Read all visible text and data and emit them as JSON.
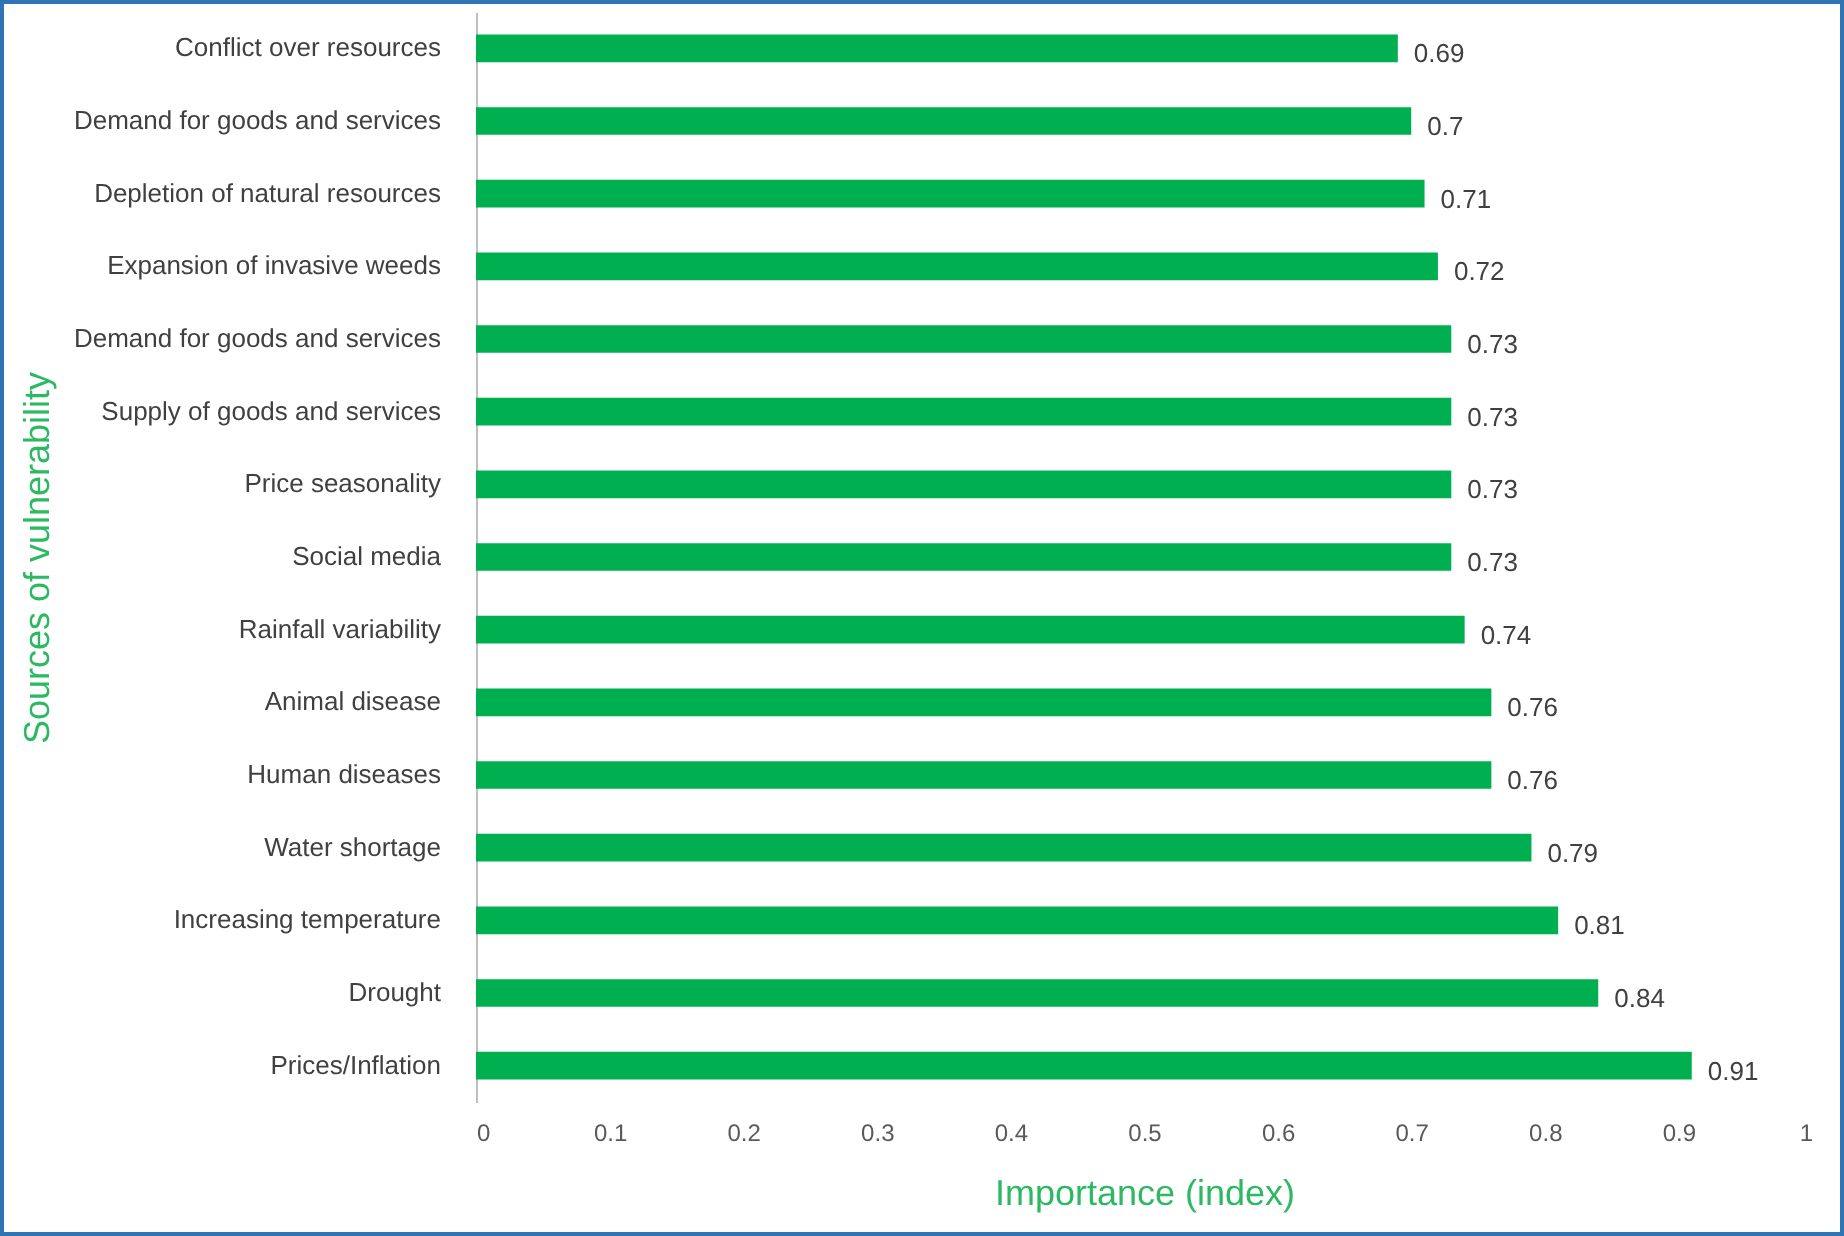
{
  "chart_data": {
    "type": "bar",
    "orientation": "horizontal",
    "xlabel": "Importance (index)",
    "ylabel": "Sources of vulnerability",
    "categories": [
      "Conflict over resources",
      "Demand for goods and services",
      "Depletion of natural resources",
      "Expansion of invasive weeds",
      "Demand for goods and services",
      "Supply of goods and services",
      "Price seasonality",
      "Social media",
      "Rainfall variability",
      "Animal disease",
      "Human diseases",
      "Water shortage",
      "Increasing temperature",
      "Drought",
      "Prices/Inflation"
    ],
    "values": [
      0.69,
      0.7,
      0.71,
      0.72,
      0.73,
      0.73,
      0.73,
      0.73,
      0.74,
      0.76,
      0.76,
      0.79,
      0.81,
      0.84,
      0.91
    ],
    "color": "#00b050",
    "xlim": [
      0,
      1
    ],
    "xticks": [
      0,
      0.1,
      0.2,
      0.3,
      0.4,
      0.5,
      0.6,
      0.7,
      0.8,
      0.9,
      1
    ],
    "grid": false,
    "data_labels": true
  }
}
